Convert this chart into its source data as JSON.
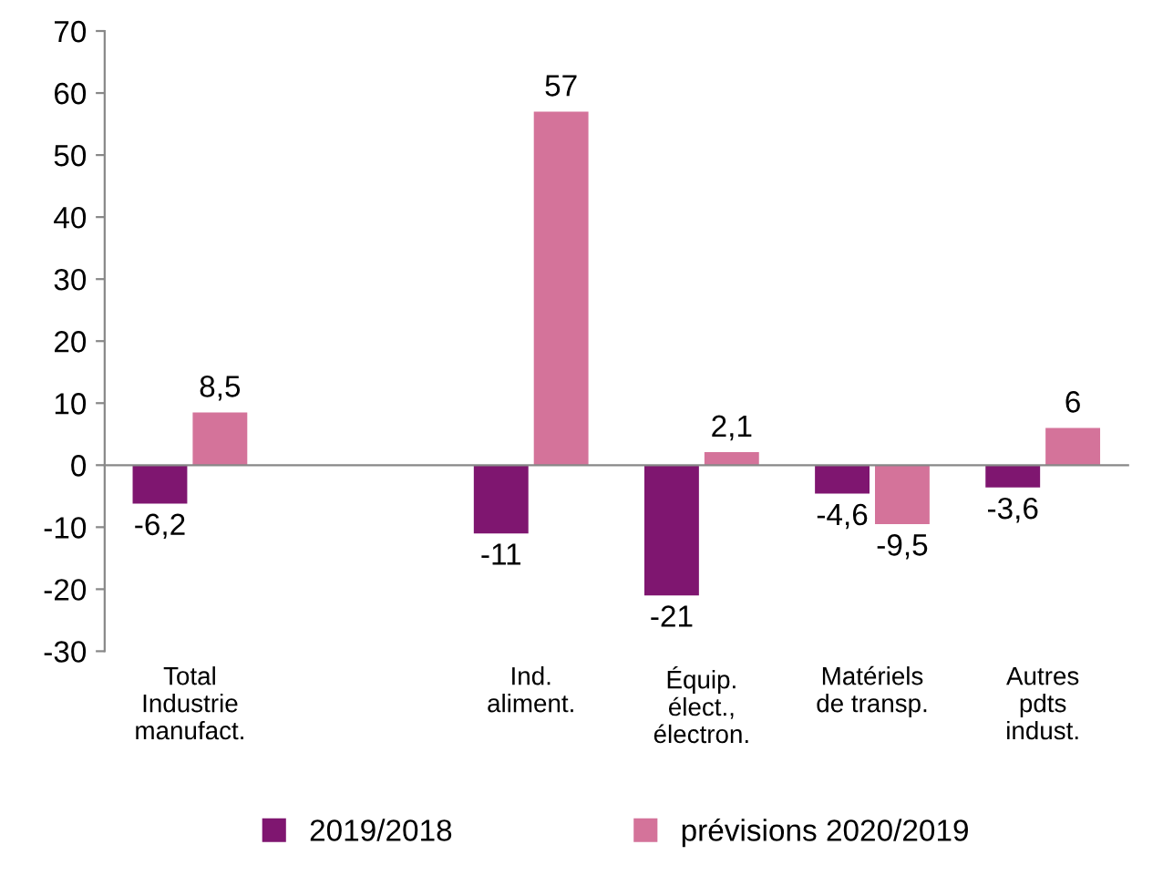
{
  "chart_data": {
    "type": "bar",
    "categories": [
      "Total\nIndustrie\nmanufact.",
      null,
      "Ind.\naliment.",
      "Équip.\nélect.,\nélectron.",
      "Matériels\nde transp.",
      "Autres\npdts\nindust."
    ],
    "series": [
      {
        "name": "2019/2018",
        "color": "#7f1670",
        "values": [
          -6.2,
          null,
          -11,
          -21,
          -4.6,
          -3.6
        ],
        "value_labels": [
          "-6,2",
          null,
          "-11",
          "-21",
          "-4,6",
          "-3,6"
        ]
      },
      {
        "name": "prévisions 2020/2019",
        "color": "#d4739a",
        "values": [
          8.5,
          null,
          57,
          2.1,
          -9.5,
          6
        ],
        "value_labels": [
          "8,5",
          null,
          "57",
          "2,1",
          "-9,5",
          "6"
        ]
      }
    ],
    "ylim": [
      -30,
      70
    ],
    "yticks": [
      -30,
      -20,
      -10,
      0,
      10,
      20,
      30,
      40,
      50,
      60,
      70
    ],
    "legend": "bottom"
  }
}
